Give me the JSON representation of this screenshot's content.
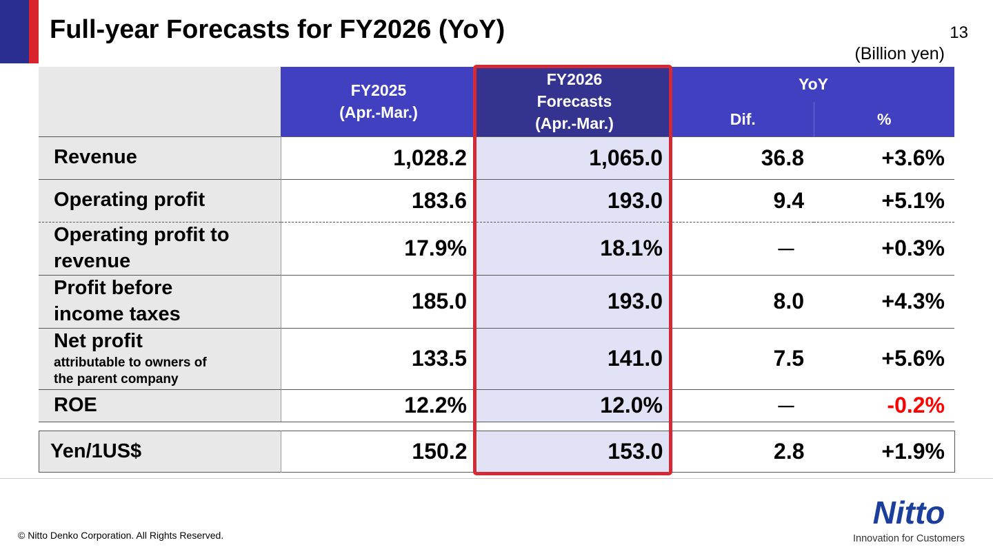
{
  "slide": {
    "title": "Full-year Forecasts for FY2026 (YoY)",
    "page_number": "13",
    "unit": "(Billion yen)",
    "highlight_color": "#d42a36",
    "header_color": "#4040c0"
  },
  "table": {
    "header": {
      "fy2025": [
        "FY2025",
        "(Apr.-Mar.)"
      ],
      "fy2026": [
        "FY2026",
        "Forecasts",
        "(Apr.-Mar.)"
      ],
      "yoy": "YoY",
      "dif": "Dif.",
      "pct": "%"
    },
    "rows": [
      {
        "label": [
          "Revenue"
        ],
        "fy2025": "1,028.2",
        "fy2026": "1,065.0",
        "dif": "36.8",
        "pct": "+3.6%"
      },
      {
        "label": [
          "Operating profit"
        ],
        "fy2025": "183.6",
        "fy2026": "193.0",
        "dif": "9.4",
        "pct": "+5.1%"
      },
      {
        "label": [
          "Operating profit to",
          "revenue"
        ],
        "fy2025": "17.9%",
        "fy2026": "18.1%",
        "dif": "－",
        "pct": "+0.3%"
      },
      {
        "label": [
          "Profit before",
          "income taxes"
        ],
        "fy2025": "185.0",
        "fy2026": "193.0",
        "dif": "8.0",
        "pct": "+4.3%"
      },
      {
        "label": [
          "Net profit"
        ],
        "sublabel": [
          "attributable to owners of",
          "the parent company"
        ],
        "fy2025": "133.5",
        "fy2026": "141.0",
        "dif": "7.5",
        "pct": "+5.6%"
      },
      {
        "label": [
          "ROE"
        ],
        "fy2025": "12.2%",
        "fy2026": "12.0%",
        "dif": "－",
        "pct": "-0.2%"
      }
    ]
  },
  "fx": {
    "label": "Yen/1US$",
    "fy2025": "150.2",
    "fy2026": "153.0",
    "dif": "2.8",
    "pct": "+1.9%"
  },
  "footer": {
    "copyright": "© Nitto Denko Corporation. All Rights Reserved.",
    "logo_name": "Nitto",
    "logo_tagline": "Innovation for Customers",
    "logo_color": "#1c3f9c"
  }
}
